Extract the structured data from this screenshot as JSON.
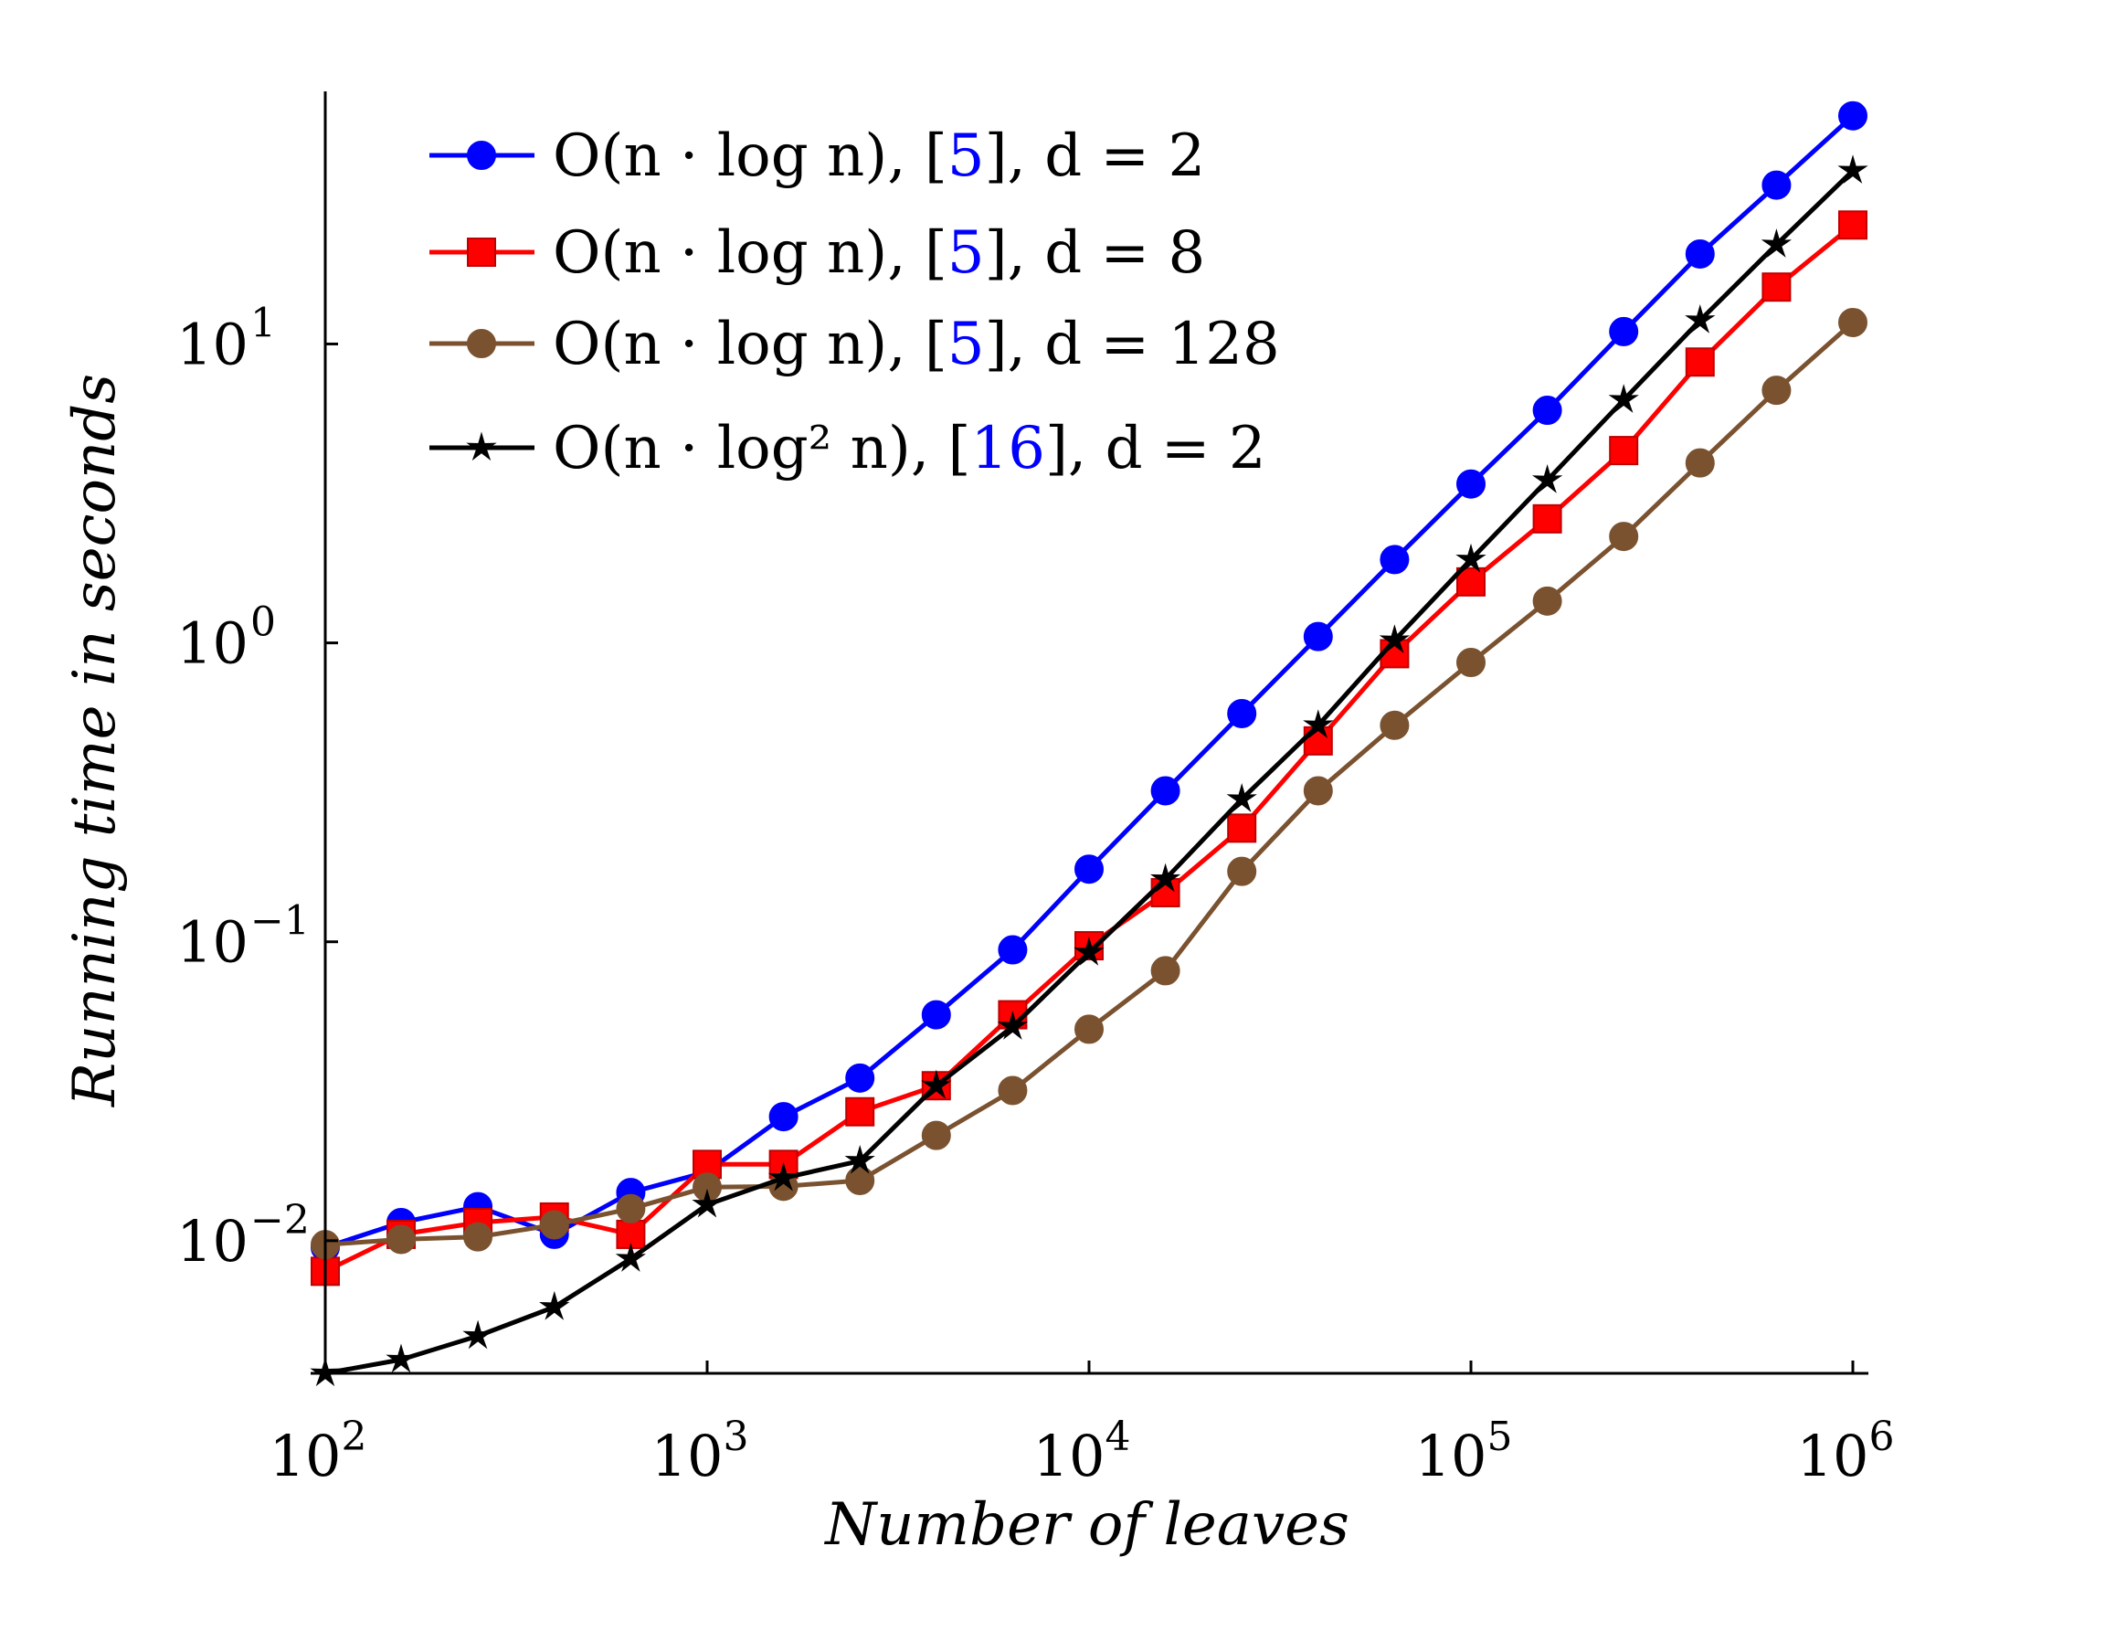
{
  "chart_data": {
    "type": "line",
    "title": "",
    "xlabel": "Number of leaves",
    "ylabel": "Running time in seconds",
    "xscale": "log",
    "yscale": "log",
    "xlim": [
      100,
      1000000
    ],
    "ylim": [
      0.0036,
      70
    ],
    "grid": false,
    "legend_position": "top-left",
    "x_ticks": [
      {
        "value": 100,
        "base": "10",
        "exp": "2"
      },
      {
        "value": 1000,
        "base": "10",
        "exp": "3"
      },
      {
        "value": 10000,
        "base": "10",
        "exp": "4"
      },
      {
        "value": 100000,
        "base": "10",
        "exp": "5"
      },
      {
        "value": 1000000,
        "base": "10",
        "exp": "6"
      }
    ],
    "y_ticks": [
      {
        "value": 0.01,
        "base": "10",
        "exp": "−2"
      },
      {
        "value": 0.1,
        "base": "10",
        "exp": "−1"
      },
      {
        "value": 1,
        "base": "10",
        "exp": "0"
      },
      {
        "value": 10,
        "base": "10",
        "exp": "1"
      }
    ],
    "x": [
      100,
      158,
      251,
      398,
      631,
      1000,
      1585,
      2512,
      3981,
      6310,
      10000,
      15849,
      25119,
      39811,
      63096,
      100000,
      158489,
      251189,
      398107,
      630957,
      1000000
    ],
    "series": [
      {
        "name": "O(n · log n), [5], d = 2",
        "color": "#0000ff",
        "marker": "circle",
        "legend": {
          "pre": "O(n · log n), [",
          "ref": "5",
          "post": "], d = 2"
        },
        "values": [
          0.0095,
          0.0115,
          0.013,
          0.0105,
          0.0145,
          0.017,
          0.026,
          0.035,
          0.057,
          0.094,
          0.175,
          0.32,
          0.58,
          1.05,
          1.9,
          3.4,
          6.0,
          11.0,
          20.0,
          34.0,
          58.0
        ]
      },
      {
        "name": "O(n · log n), [5], d = 8",
        "color": "#ff0000",
        "marker": "square",
        "legend": {
          "pre": "O(n · log n), [",
          "ref": "5",
          "post": "], d = 8"
        },
        "values": [
          0.0079,
          0.0105,
          0.0115,
          0.012,
          0.0105,
          0.018,
          0.018,
          0.027,
          0.033,
          0.057,
          0.097,
          0.146,
          0.24,
          0.47,
          0.92,
          1.6,
          2.6,
          4.4,
          8.7,
          15.5,
          25.0
        ]
      },
      {
        "name": "O(n · log n), [5], d = 128",
        "color": "#7a5230",
        "marker": "circle",
        "legend": {
          "pre": "O(n · log n), [",
          "ref": "5",
          "post": "], d = 128"
        },
        "values": [
          0.0097,
          0.0101,
          0.0103,
          0.0113,
          0.0128,
          0.0151,
          0.0152,
          0.0159,
          0.0225,
          0.0318,
          0.051,
          0.08,
          0.172,
          0.32,
          0.53,
          0.86,
          1.38,
          2.27,
          4.0,
          7.0,
          11.8
        ]
      },
      {
        "name": "O(n · log² n), [16], d = 2",
        "color": "#000000",
        "marker": "star",
        "legend": {
          "pre": "O(n · log² n), [",
          "ref": "16",
          "post": "], d = 2"
        },
        "values": [
          0.0036,
          0.004,
          0.0048,
          0.006,
          0.0087,
          0.0132,
          0.0162,
          0.0185,
          0.033,
          0.052,
          0.092,
          0.162,
          0.3,
          0.53,
          1.02,
          1.9,
          3.5,
          6.5,
          12.0,
          21.5,
          38.0
        ]
      }
    ]
  },
  "colors": {
    "axis": "#000000",
    "citation": "#0000ff"
  }
}
